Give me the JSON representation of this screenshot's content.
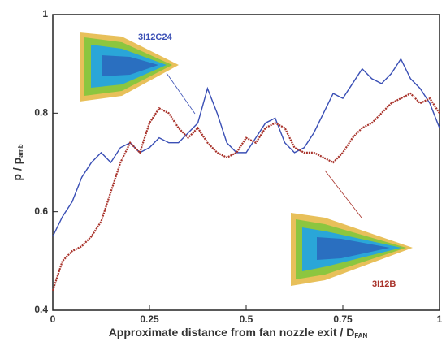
{
  "chart_data": {
    "type": "line",
    "x_label": "Approximate distance from fan nozzle exit / D",
    "x_label_sub": "FAN",
    "y_label": "p / p",
    "y_label_sub": "amb",
    "x": [
      0,
      0.025,
      0.05,
      0.075,
      0.1,
      0.125,
      0.15,
      0.175,
      0.2,
      0.225,
      0.25,
      0.275,
      0.3,
      0.325,
      0.35,
      0.375,
      0.4,
      0.425,
      0.45,
      0.475,
      0.5,
      0.525,
      0.55,
      0.575,
      0.6,
      0.625,
      0.65,
      0.675,
      0.7,
      0.725,
      0.75,
      0.775,
      0.8,
      0.825,
      0.85,
      0.875,
      0.9,
      0.925,
      0.95,
      0.975,
      1.0
    ],
    "series": [
      {
        "name": "3I12C24",
        "color": "#3a4fb5",
        "values": [
          0.55,
          0.59,
          0.62,
          0.67,
          0.7,
          0.72,
          0.7,
          0.73,
          0.74,
          0.72,
          0.73,
          0.75,
          0.74,
          0.74,
          0.76,
          0.78,
          0.85,
          0.8,
          0.74,
          0.72,
          0.72,
          0.75,
          0.78,
          0.79,
          0.74,
          0.72,
          0.73,
          0.76,
          0.8,
          0.84,
          0.83,
          0.86,
          0.89,
          0.87,
          0.86,
          0.88,
          0.91,
          0.87,
          0.85,
          0.82,
          0.77
        ]
      },
      {
        "name": "3I12B",
        "color": "#a8322a",
        "values": [
          0.44,
          0.5,
          0.52,
          0.53,
          0.55,
          0.58,
          0.64,
          0.7,
          0.74,
          0.72,
          0.78,
          0.81,
          0.8,
          0.77,
          0.75,
          0.77,
          0.74,
          0.72,
          0.71,
          0.72,
          0.75,
          0.74,
          0.77,
          0.78,
          0.77,
          0.73,
          0.72,
          0.72,
          0.71,
          0.7,
          0.72,
          0.75,
          0.77,
          0.78,
          0.8,
          0.82,
          0.83,
          0.84,
          0.82,
          0.83,
          0.8
        ]
      }
    ],
    "xlim": [
      0,
      1
    ],
    "ylim": [
      0.4,
      1
    ],
    "xticks": [
      0,
      0.25,
      0.5,
      0.75,
      1
    ],
    "yticks": [
      0.4,
      0.6,
      0.8,
      1
    ]
  }
}
